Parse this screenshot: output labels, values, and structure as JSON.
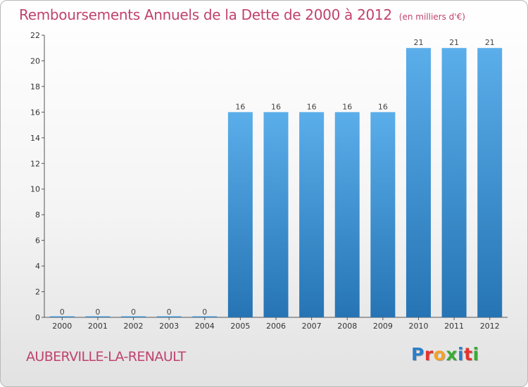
{
  "chart": {
    "title": "Remboursements Annuels de la Dette de 2000 à 2012",
    "subtitle": "(en milliers d'€)",
    "commune": "AUBERVILLE-LA-RENAULT"
  },
  "logo": {
    "text": "Proxiti",
    "letters": [
      {
        "char": "P",
        "color": "#2a7fc9"
      },
      {
        "char": "r",
        "color": "#e3342f"
      },
      {
        "char": "o",
        "color": "#f4a12a"
      },
      {
        "char": "x",
        "color": "#3aaa35"
      },
      {
        "char": "i",
        "color": "#2a7fc9"
      },
      {
        "char": "t",
        "color": "#e3342f"
      },
      {
        "char": "i",
        "color": "#3aaa35"
      }
    ]
  },
  "colors": {
    "title": "#c0426e",
    "bar_light": "#5aaeea",
    "bar_dark": "#2674b4",
    "axis": "#555555"
  },
  "chart_data": {
    "type": "bar",
    "title": "Remboursements Annuels de la Dette de 2000 à 2012",
    "subtitle": "(en milliers d'€)",
    "categories": [
      "2000",
      "2001",
      "2002",
      "2003",
      "2004",
      "2005",
      "2006",
      "2007",
      "2008",
      "2009",
      "2010",
      "2011",
      "2012"
    ],
    "values": [
      0,
      0,
      0,
      0,
      0,
      16,
      16,
      16,
      16,
      16,
      21,
      21,
      21
    ],
    "data_labels": [
      "0",
      "0",
      "0",
      "0",
      "0",
      "16",
      "16",
      "16",
      "16",
      "16",
      "21",
      "21",
      "21"
    ],
    "yticks": [
      0,
      2,
      4,
      6,
      8,
      10,
      12,
      14,
      16,
      18,
      20,
      22
    ],
    "ylim": [
      0,
      22
    ],
    "xlabel": "",
    "ylabel": "",
    "grid": false,
    "legend": "none"
  }
}
